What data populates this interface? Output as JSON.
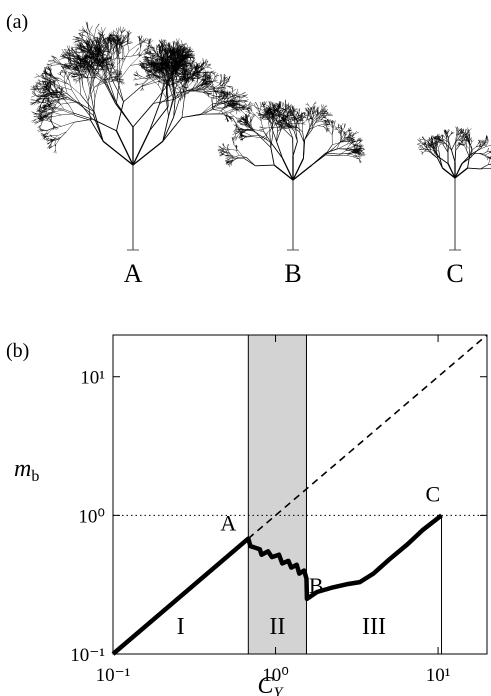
{
  "panel_a": {
    "label": "(a)",
    "tree_labels": [
      "A",
      "B",
      "C"
    ]
  },
  "chart_data": {
    "type": "line",
    "panel_label": "(b)",
    "x_label": "C",
    "x_label_sub": "Y",
    "y_label": "m",
    "y_label_sub": "b",
    "log_x": true,
    "log_y": true,
    "xlim": [
      0.1,
      20
    ],
    "ylim": [
      0.1,
      20
    ],
    "xticks": [
      {
        "value": 0.1,
        "label": "10⁻¹"
      },
      {
        "value": 1,
        "label": "10⁰"
      },
      {
        "value": 10,
        "label": "10¹"
      }
    ],
    "yticks": [
      {
        "value": 0.1,
        "label": "10⁻¹"
      },
      {
        "value": 1,
        "label": "10⁰"
      },
      {
        "value": 10,
        "label": "10¹"
      }
    ],
    "shaded_region": [
      0.68,
      1.55
    ],
    "shade_color": "#d3d3d3",
    "hline": 1,
    "identity_line": true,
    "series": [
      {
        "name": "m_b",
        "color": "#000000",
        "x": [
          0.1,
          0.68,
          0.7,
          0.8,
          0.82,
          0.9,
          0.95,
          1.05,
          1.1,
          1.2,
          1.25,
          1.35,
          1.4,
          1.5,
          1.55,
          1.56,
          1.8,
          2.2,
          2.8,
          3.3,
          4,
          5,
          6.5,
          8,
          10.5
        ],
        "values": [
          0.1,
          0.68,
          0.6,
          0.57,
          0.52,
          0.55,
          0.5,
          0.52,
          0.45,
          0.47,
          0.42,
          0.44,
          0.38,
          0.4,
          0.35,
          0.25,
          0.28,
          0.3,
          0.32,
          0.33,
          0.38,
          0.48,
          0.62,
          0.78,
          1.0
        ]
      }
    ],
    "point_labels": [
      {
        "label": "A",
        "index": 1
      },
      {
        "label": "B",
        "index": 15
      },
      {
        "label": "C",
        "index": 24
      }
    ],
    "region_labels": [
      "I",
      "II",
      "III"
    ]
  }
}
